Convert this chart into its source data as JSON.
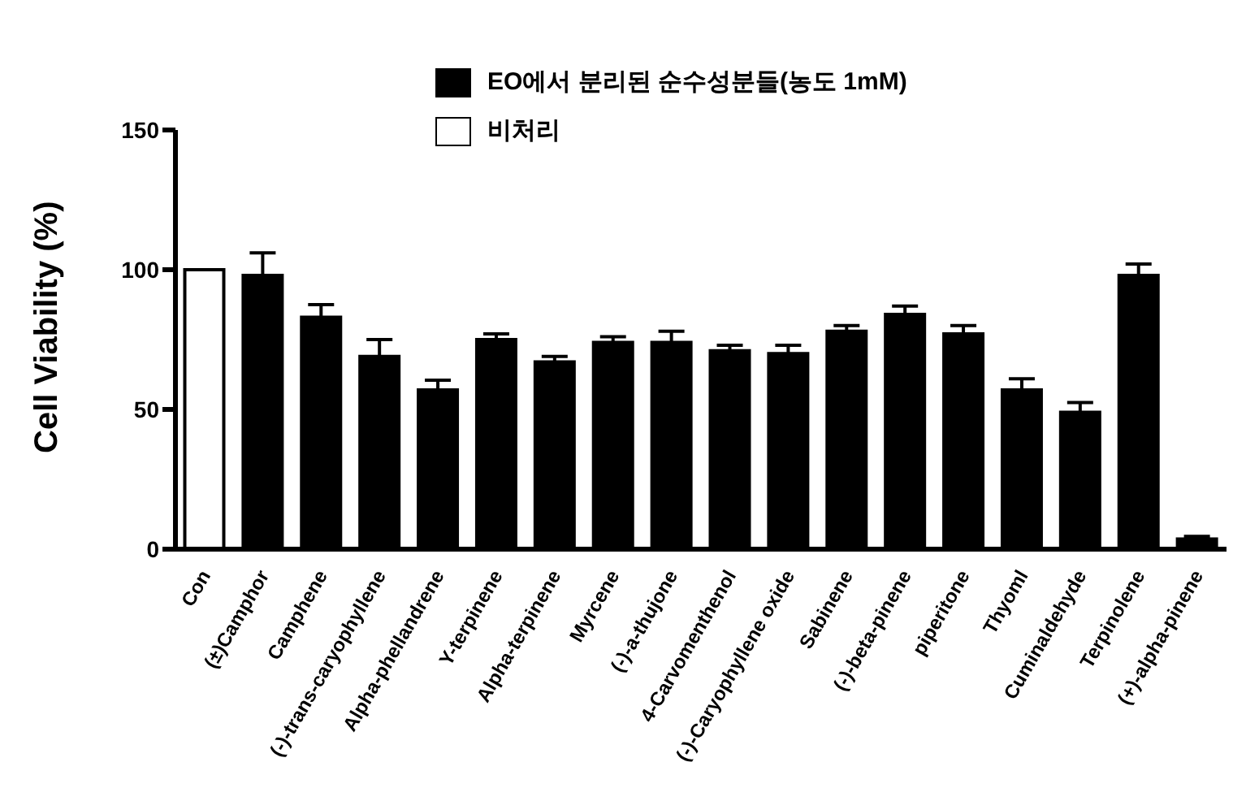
{
  "chart_data": {
    "type": "bar",
    "ylabel": "Cell Viability (%)",
    "categories": [
      "Con",
      "(±)Camphor",
      "Camphene",
      "(-)-trans-caryophyllene",
      "Alpha-phellandrene",
      "Y-terpinene",
      "Alpha-terpinene",
      "Myrcene",
      "(-)-a-thujone",
      "4-Carvomenthenol",
      "(-)-Caryophyllene oxide",
      "Sabinene",
      "(-)-beta-pinene",
      "piperitone",
      "Thyoml",
      "Cuminaldehyde",
      "Terpinolene",
      "(+)-alpha-pinene"
    ],
    "series": [
      {
        "name": "EO에서 분리된 순수성분들(농도 1mM)",
        "color": "#000000",
        "values": [
          null,
          98,
          83,
          69,
          57,
          75,
          67,
          74,
          74,
          71,
          70,
          78,
          84,
          77,
          57,
          49,
          98,
          3.6
        ],
        "errors": [
          null,
          8,
          4.5,
          6,
          3.5,
          2,
          2,
          2,
          4,
          2,
          3,
          2,
          3,
          3,
          4,
          3.5,
          4,
          1
        ]
      },
      {
        "name": "비처리",
        "color": "#ffffff",
        "values": [
          100,
          null,
          null,
          null,
          null,
          null,
          null,
          null,
          null,
          null,
          null,
          null,
          null,
          null,
          null,
          null,
          null,
          null
        ]
      }
    ],
    "stacked": true,
    "ylim": [
      0,
      150
    ],
    "yticks": [
      0,
      50,
      100,
      150
    ],
    "grid": false,
    "legend": "top"
  }
}
